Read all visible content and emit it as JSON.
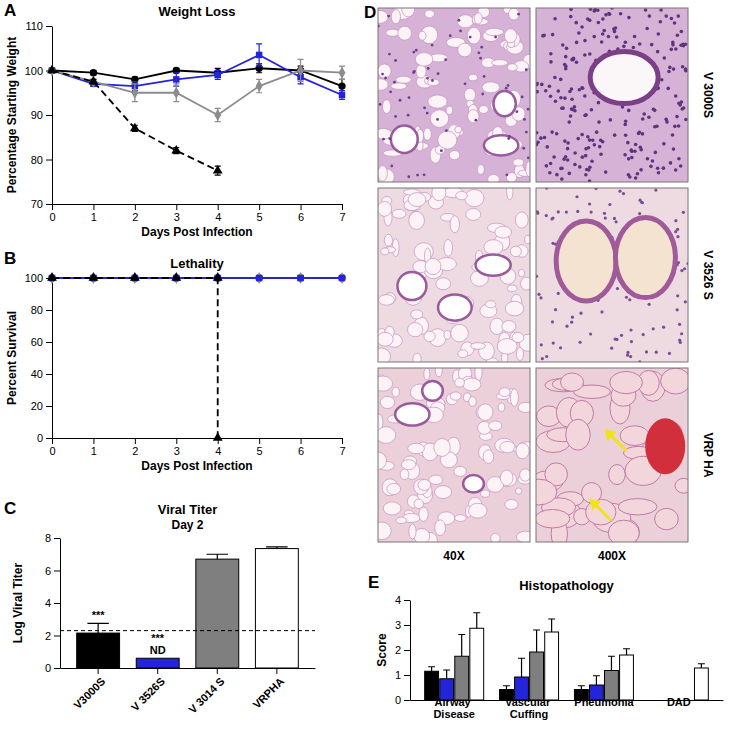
{
  "chart_data": [
    {
      "panel": "A",
      "type": "line",
      "title": "Weight Loss",
      "x_label": "Days Post Infection",
      "y_label": "Percentage Starting Weight",
      "x": [
        0,
        1,
        2,
        3,
        4,
        5,
        6,
        7
      ],
      "xlim": [
        0,
        7
      ],
      "xticks": [
        0,
        1,
        2,
        3,
        4,
        5,
        6,
        7
      ],
      "ylim": [
        70,
        110
      ],
      "yticks": [
        70,
        80,
        90,
        100,
        110
      ],
      "series": [
        {
          "color": "#000000",
          "marker": "circle",
          "line_style": "solid",
          "values": [
            100,
            99.5,
            98,
            100,
            99.5,
            100.5,
            100,
            96.5
          ],
          "errors": [
            0.3,
            0.5,
            0.5,
            0.5,
            1,
            1,
            1,
            1.5
          ]
        },
        {
          "color": "#2424d8",
          "marker": "square",
          "line_style": "solid",
          "values": [
            100,
            97,
            96.5,
            98,
            99,
            103.5,
            98.5,
            94.5
          ],
          "errors": [
            0,
            0.5,
            1,
            1.5,
            1,
            2.5,
            1.5,
            1
          ]
        },
        {
          "color": "#8c8c8c",
          "marker": "diamond",
          "line_style": "solid",
          "values": [
            100,
            97.5,
            95,
            95,
            90,
            96.5,
            100,
            99.5
          ],
          "errors": [
            0,
            0.5,
            2,
            2,
            1.5,
            1.5,
            2.5,
            1.5
          ]
        },
        {
          "color": "#000000",
          "marker": "triangle",
          "line_style": "dashed",
          "values": [
            100,
            97.5,
            87,
            82,
            77.5,
            null,
            null,
            null
          ],
          "errors": [
            0,
            0.5,
            0.7,
            0.7,
            1,
            null,
            null,
            null
          ]
        }
      ]
    },
    {
      "panel": "B",
      "type": "line",
      "title": "Lethality",
      "x_label": "Days Post Infection",
      "y_label": "Percent Survival",
      "xlim": [
        0,
        7
      ],
      "xticks": [
        0,
        1,
        2,
        3,
        4,
        5,
        6,
        7
      ],
      "ylim": [
        0,
        100
      ],
      "yticks": [
        0,
        20,
        40,
        60,
        80,
        100
      ],
      "series": [
        {
          "color": "#000000",
          "marker": "circle",
          "line_style": "solid",
          "x": [
            0,
            1,
            2,
            3,
            4,
            5,
            6,
            7
          ],
          "values": [
            100,
            100,
            100,
            100,
            100,
            100,
            100,
            100
          ]
        },
        {
          "color": "#8c8c8c",
          "marker": "diamond",
          "line_style": "solid",
          "x": [
            0,
            1,
            2,
            3,
            4,
            5,
            6,
            7
          ],
          "values": [
            100,
            100,
            100,
            100,
            100,
            100,
            100,
            100
          ]
        },
        {
          "color": "#2424d8",
          "marker": "square",
          "line_style": "solid",
          "x": [
            0,
            1,
            2,
            3,
            4,
            5,
            6,
            7
          ],
          "values": [
            100,
            100,
            100,
            100,
            100,
            100,
            100,
            100
          ]
        },
        {
          "color": "#000000",
          "marker": "triangle",
          "line_style": "dashed",
          "x": [
            0,
            1,
            2,
            3,
            4,
            4
          ],
          "values": [
            100,
            100,
            100,
            100,
            100,
            0
          ]
        }
      ]
    },
    {
      "panel": "C",
      "type": "bar",
      "title": "Viral Titer",
      "subtitle": "Day 2",
      "y_label": "Log Viral Titer",
      "categories": [
        "V3000S",
        "V 3526S",
        "V 3014 S",
        "VRPHA"
      ],
      "values": [
        2.15,
        0.6,
        6.7,
        7.35
      ],
      "errors": [
        0.6,
        0,
        0.3,
        0.1
      ],
      "colors": [
        "#000000",
        "#2424d8",
        "#7f7f7f",
        "#ffffff"
      ],
      "ylim": [
        0,
        8
      ],
      "yticks": [
        0,
        2,
        4,
        6,
        8
      ],
      "reference_line": 2.3,
      "annotations": [
        {
          "category": "V3000S",
          "text": "***"
        },
        {
          "category": "V 3526S",
          "text": "***"
        },
        {
          "category": "V 3526S",
          "text": "ND"
        }
      ]
    },
    {
      "panel": "D",
      "type": "image",
      "row_labels": [
        "V 3000S",
        "V 3526 S",
        "VRP HA"
      ],
      "column_labels": [
        "40X",
        "400X"
      ]
    },
    {
      "panel": "E",
      "type": "bar",
      "title": "Histopathology",
      "y_label": "Score",
      "categories": [
        "Airway Disease",
        "Vascular Cuffing",
        "Pneumonia",
        "DAD"
      ],
      "ylim": [
        0,
        4
      ],
      "yticks": [
        0,
        1,
        2,
        3,
        4
      ],
      "series": [
        {
          "color": "#000000",
          "values": [
            1.15,
            0.42,
            0.42,
            0
          ],
          "errors": [
            0.18,
            0.15,
            0.15,
            0
          ]
        },
        {
          "color": "#2424d8",
          "values": [
            0.85,
            0.92,
            0.6,
            0
          ],
          "errors": [
            0.35,
            0.75,
            0.37,
            0
          ]
        },
        {
          "color": "#7f7f7f",
          "values": [
            1.75,
            1.92,
            1.18,
            0
          ],
          "errors": [
            0.87,
            0.88,
            0.57,
            0
          ]
        },
        {
          "color": "#ffffff",
          "values": [
            2.87,
            2.72,
            1.8,
            1.28
          ],
          "errors": [
            0.62,
            0.52,
            0.25,
            0.17
          ]
        }
      ]
    }
  ]
}
